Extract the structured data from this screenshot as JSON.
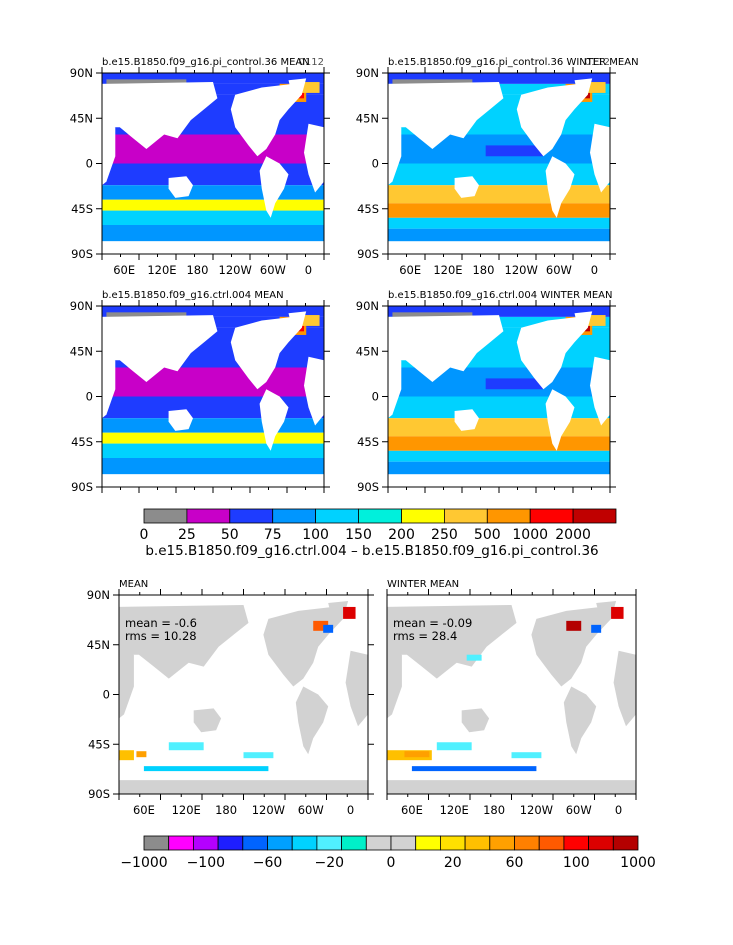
{
  "chart_data": [
    {
      "type": "heatmap",
      "id": "p1",
      "title": "b.e15.B1850.f09_g16.pi_control.36 MEAN",
      "corner_label": "0112",
      "xticks": [
        "60E",
        "120E",
        "180",
        "120W",
        "60W",
        "0"
      ],
      "yticks": [
        "90N",
        "45N",
        "0",
        "45S",
        "90S"
      ]
    },
    {
      "type": "heatmap",
      "id": "p2",
      "title": "b.e15.B1850.f09_g16.pi_control.36 WINTER MEAN",
      "corner_label": "0112",
      "xticks": [
        "60E",
        "120E",
        "180",
        "120W",
        "60W",
        "0"
      ],
      "yticks": [
        "90N",
        "45N",
        "0",
        "45S",
        "90S"
      ]
    },
    {
      "type": "heatmap",
      "id": "p3",
      "title": "b.e15.B1850.f09_g16.ctrl.004 MEAN",
      "yticks": [
        "90N",
        "45N",
        "0",
        "45S",
        "90S"
      ]
    },
    {
      "type": "heatmap",
      "id": "p4",
      "title": "b.e15.B1850.f09_g16.ctrl.004 WINTER MEAN",
      "yticks": [
        "90N",
        "45N",
        "0",
        "45S",
        "90S"
      ]
    },
    {
      "type": "heatmap",
      "id": "d1",
      "title": "MEAN",
      "stats": [
        "mean = -0.6",
        "rms = 10.28"
      ],
      "xticks": [
        "60E",
        "120E",
        "180",
        "120W",
        "60W",
        "0"
      ],
      "yticks": [
        "90N",
        "45N",
        "0",
        "45S",
        "90S"
      ]
    },
    {
      "type": "heatmap",
      "id": "d2",
      "title": "WINTER MEAN",
      "stats": [
        "mean = -0.09",
        "rms = 28.4"
      ],
      "xticks": [
        "60E",
        "120E",
        "180",
        "120W",
        "60W",
        "0"
      ]
    }
  ],
  "colorbar_top": {
    "labels": [
      "0",
      "25",
      "50",
      "75",
      "100",
      "150",
      "200",
      "250",
      "500",
      "1000",
      "2000"
    ],
    "colors": [
      "#8c8c8c",
      "#c800c8",
      "#1e3cff",
      "#0096ff",
      "#00d2ff",
      "#00f0dc",
      "#ffff00",
      "#ffc832",
      "#ff9600",
      "#ff0000",
      "#c00000"
    ],
    "caption": "b.e15.B1850.f09_g16.ctrl.004 – b.e15.B1850.f09_g16.pi_control.36"
  },
  "colorbar_bottom": {
    "labels": [
      "-1000",
      "-100",
      "-60",
      "-20",
      "0",
      "20",
      "60",
      "100",
      "1000"
    ],
    "colors": [
      "#8c8c8c",
      "#ff00ff",
      "#b400ff",
      "#1e1eff",
      "#0064ff",
      "#00a0ff",
      "#00d2ff",
      "#50f0ff",
      "#00f0c8",
      "#d2d2d2",
      "#d2d2d2",
      "#ffff00",
      "#ffe000",
      "#ffc000",
      "#ffa000",
      "#ff8000",
      "#ff5a00",
      "#ff0000",
      "#dc0000",
      "#b40000"
    ]
  }
}
